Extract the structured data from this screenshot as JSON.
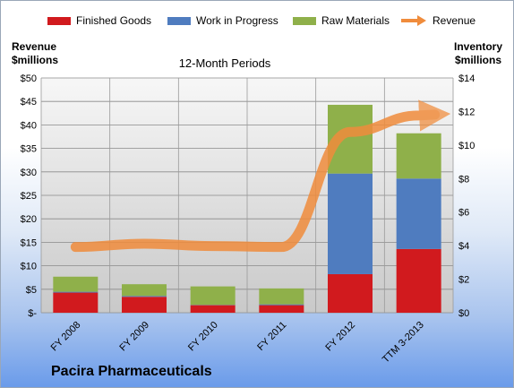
{
  "legend": {
    "finished_goods": "Finished Goods",
    "wip": "Work in Progress",
    "raw": "Raw Materials",
    "revenue": "Revenue"
  },
  "left_axis_title": [
    "Revenue",
    "$millions"
  ],
  "right_axis_title": [
    "Inventory",
    "$millions"
  ],
  "period_label": "12-Month Periods",
  "company": "Pacira Pharmaceuticals",
  "colors": {
    "finished_goods": "#d11a1e",
    "wip": "#4f7cbf",
    "raw": "#8fb04a",
    "revenue": "#f08c3c"
  },
  "chart_data": {
    "type": "bar",
    "stacked": true,
    "categories": [
      "FY 2008",
      "FY 2009",
      "FY 2010",
      "FY 2011",
      "FY 2012",
      "TTM 3-2013"
    ],
    "series": [
      {
        "name": "Finished Goods",
        "axis": "right",
        "values": [
          1.2,
          0.95,
          0.45,
          0.45,
          2.3,
          3.8
        ]
      },
      {
        "name": "Work in Progress",
        "axis": "right",
        "values": [
          0.05,
          0.05,
          0.02,
          0.05,
          6.0,
          4.2
        ]
      },
      {
        "name": "Raw Materials",
        "axis": "right",
        "values": [
          0.9,
          0.7,
          1.1,
          0.95,
          4.1,
          2.7
        ]
      },
      {
        "name": "Revenue",
        "type": "line",
        "axis": "left",
        "values": [
          14.0,
          14.7,
          14.2,
          14.0,
          38.5,
          42.0
        ]
      }
    ],
    "left_axis": {
      "title": "Revenue $millions",
      "ylim": [
        0,
        50
      ],
      "ticks": [
        "$-",
        "$5",
        "$10",
        "$15",
        "$20",
        "$25",
        "$30",
        "$35",
        "$40",
        "$45",
        "$50"
      ]
    },
    "right_axis": {
      "title": "Inventory $millions",
      "ylim": [
        0,
        14
      ],
      "ticks": [
        "$0",
        "$2",
        "$4",
        "$6",
        "$8",
        "$10",
        "$12",
        "$14"
      ]
    },
    "grid": true,
    "legend": "top"
  }
}
